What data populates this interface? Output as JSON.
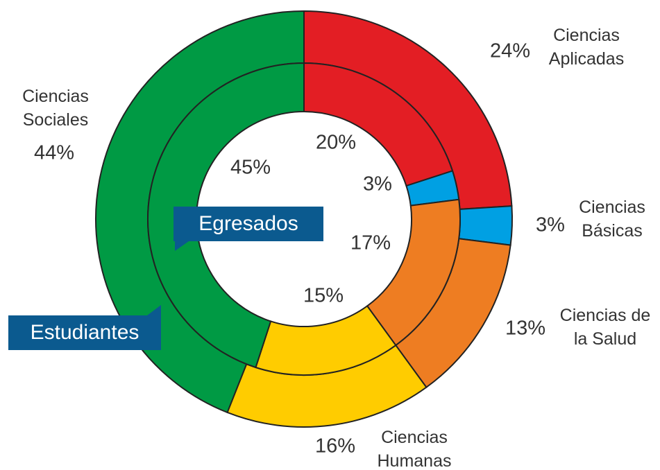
{
  "chart_data": {
    "type": "donut",
    "categories": [
      "Ciencias\nAplicadas",
      "Ciencias\nBásicas",
      "Ciencias de\nla Salud",
      "Ciencias\nHumanas",
      "Ciencias\nSociales"
    ],
    "colors": [
      "#e31e24",
      "#00a0e3",
      "#ee7d22",
      "#ffcc00",
      "#009a44"
    ],
    "series": [
      {
        "name": "Estudiantes",
        "values": [
          24,
          3,
          13,
          16,
          44
        ],
        "value_labels": [
          "24%",
          "3%",
          "13%",
          "16%",
          "44%"
        ]
      },
      {
        "name": "Egresados",
        "values": [
          20,
          3,
          17,
          15,
          45
        ],
        "value_labels": [
          "20%",
          "3%",
          "17%",
          "15%",
          "45%"
        ]
      }
    ]
  }
}
